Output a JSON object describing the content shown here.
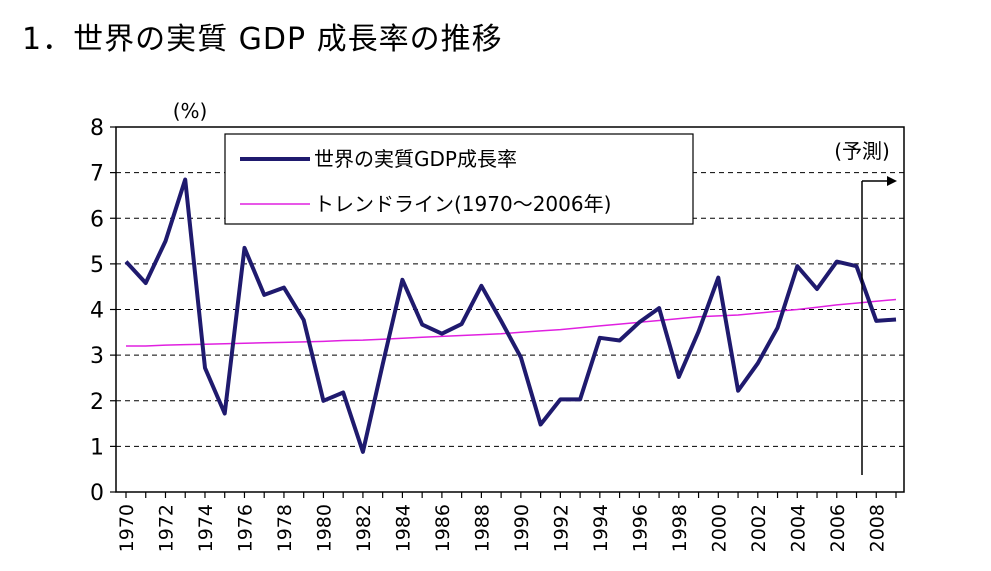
{
  "title": "1．世界の実質 GDP 成長率の推移",
  "colors": {
    "series_main": "#1f1a6e",
    "series_trend": "#e020e0",
    "grid": "#000000"
  },
  "chart_data": {
    "type": "line",
    "title": "1．世界の実質 GDP 成長率の推移",
    "ylabel": "(%)",
    "ylim": [
      0,
      8
    ],
    "yticks": [
      0,
      1,
      2,
      3,
      4,
      5,
      6,
      7,
      8
    ],
    "x": [
      1970,
      1971,
      1972,
      1973,
      1974,
      1975,
      1976,
      1977,
      1978,
      1979,
      1980,
      1981,
      1982,
      1983,
      1984,
      1985,
      1986,
      1987,
      1988,
      1989,
      1990,
      1991,
      1992,
      1993,
      1994,
      1995,
      1996,
      1997,
      1998,
      1999,
      2000,
      2001,
      2002,
      2003,
      2004,
      2005,
      2006,
      2007,
      2008,
      2009
    ],
    "x_tick_labels": [
      "1970",
      "1972",
      "1974",
      "1976",
      "1978",
      "1980",
      "1982",
      "1984",
      "1986",
      "1988",
      "1990",
      "1992",
      "1994",
      "1996",
      "1998",
      "2000",
      "2002",
      "2004",
      "2006",
      "2008"
    ],
    "series": [
      {
        "name": "世界の実質GDP成長率",
        "values": [
          5.05,
          4.58,
          5.5,
          6.85,
          2.72,
          1.72,
          5.35,
          4.32,
          4.48,
          3.77,
          2.0,
          2.18,
          0.88,
          2.8,
          4.65,
          3.67,
          3.47,
          3.68,
          4.52,
          3.75,
          2.95,
          1.48,
          2.03,
          2.03,
          3.38,
          3.32,
          3.72,
          4.03,
          2.52,
          3.52,
          4.7,
          2.22,
          2.82,
          3.6,
          4.95,
          4.45,
          5.05,
          4.95,
          3.75,
          3.78
        ]
      },
      {
        "name": "トレンドライン(1970〜2006年)",
        "values": [
          3.2,
          3.2,
          3.22,
          3.23,
          3.24,
          3.25,
          3.26,
          3.27,
          3.28,
          3.29,
          3.3,
          3.32,
          3.33,
          3.35,
          3.37,
          3.39,
          3.41,
          3.43,
          3.45,
          3.47,
          3.5,
          3.53,
          3.56,
          3.6,
          3.64,
          3.68,
          3.72,
          3.76,
          3.8,
          3.84,
          3.86,
          3.88,
          3.92,
          3.96,
          4.0,
          4.05,
          4.1,
          4.14,
          4.18,
          4.22
        ]
      }
    ],
    "annotation": "(予測)",
    "forecast_start_year": 2007
  }
}
